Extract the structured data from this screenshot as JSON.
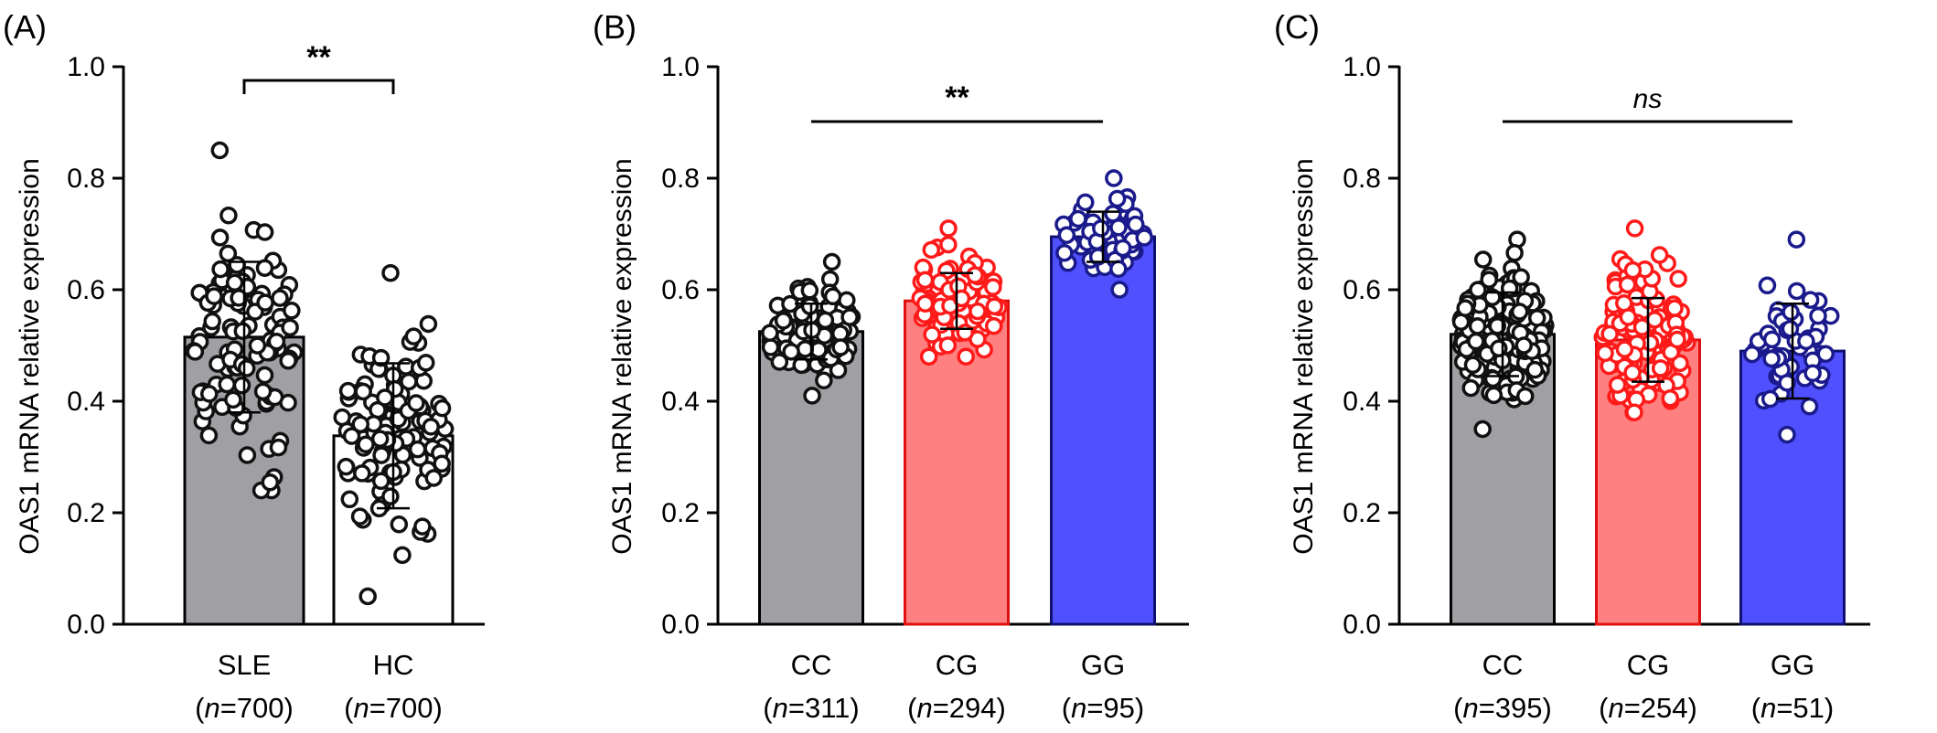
{
  "chart_data": [
    {
      "panel_label": "(A)",
      "type": "bar",
      "ylabel": "OAS1 mRNA relative expression",
      "ylim": [
        0,
        1.0
      ],
      "yticks": [
        "0.0",
        "0.2",
        "0.4",
        "0.6",
        "0.8",
        "1.0"
      ],
      "categories": [
        "SLE",
        "HC"
      ],
      "sample_sizes": [
        "700",
        "700"
      ],
      "values": [
        0.515,
        0.338
      ],
      "error": [
        0.135,
        0.13
      ],
      "colors": [
        "#a0a0a4",
        "#ffffff"
      ],
      "point_colors": [
        "#111111",
        "#111111"
      ],
      "point_ranges": [
        [
          0.24,
          0.85
        ],
        [
          0.05,
          0.63
        ]
      ],
      "significance": "**",
      "comparison": [
        0,
        1
      ]
    },
    {
      "panel_label": "(B)",
      "type": "bar",
      "ylabel": "OAS1 mRNA relative expression",
      "ylim": [
        0,
        1.0
      ],
      "yticks": [
        "0.0",
        "0.2",
        "0.4",
        "0.6",
        "0.8",
        "1.0"
      ],
      "categories": [
        "CC",
        "CG",
        "GG"
      ],
      "sample_sizes": [
        "311",
        "294",
        "95"
      ],
      "values": [
        0.525,
        0.58,
        0.695
      ],
      "error": [
        0.05,
        0.05,
        0.045
      ],
      "colors": [
        "#a0a0a4",
        "#ff8080",
        "#5050ff"
      ],
      "point_colors": [
        "#111111",
        "#ff1a1a",
        "#1a1a8c"
      ],
      "point_ranges": [
        [
          0.41,
          0.65
        ],
        [
          0.48,
          0.71
        ],
        [
          0.6,
          0.8
        ]
      ],
      "significance": "**",
      "comparison": [
        0,
        2
      ]
    },
    {
      "panel_label": "(C)",
      "type": "bar",
      "ylabel": "OAS1 mRNA relative expression",
      "ylim": [
        0,
        1.0
      ],
      "yticks": [
        "0.0",
        "0.2",
        "0.4",
        "0.6",
        "0.8",
        "1.0"
      ],
      "categories": [
        "CC",
        "CG",
        "GG"
      ],
      "sample_sizes": [
        "395",
        "254",
        "51"
      ],
      "values": [
        0.52,
        0.51,
        0.49
      ],
      "error": [
        0.075,
        0.075,
        0.085
      ],
      "colors": [
        "#a0a0a4",
        "#ff8080",
        "#5050ff"
      ],
      "point_colors": [
        "#111111",
        "#ff1a1a",
        "#1a1a8c"
      ],
      "point_ranges": [
        [
          0.35,
          0.69
        ],
        [
          0.38,
          0.71
        ],
        [
          0.34,
          0.69
        ]
      ],
      "significance": "ns",
      "comparison": [
        0,
        2
      ]
    }
  ],
  "n_prefix": "n",
  "n_eq": "="
}
